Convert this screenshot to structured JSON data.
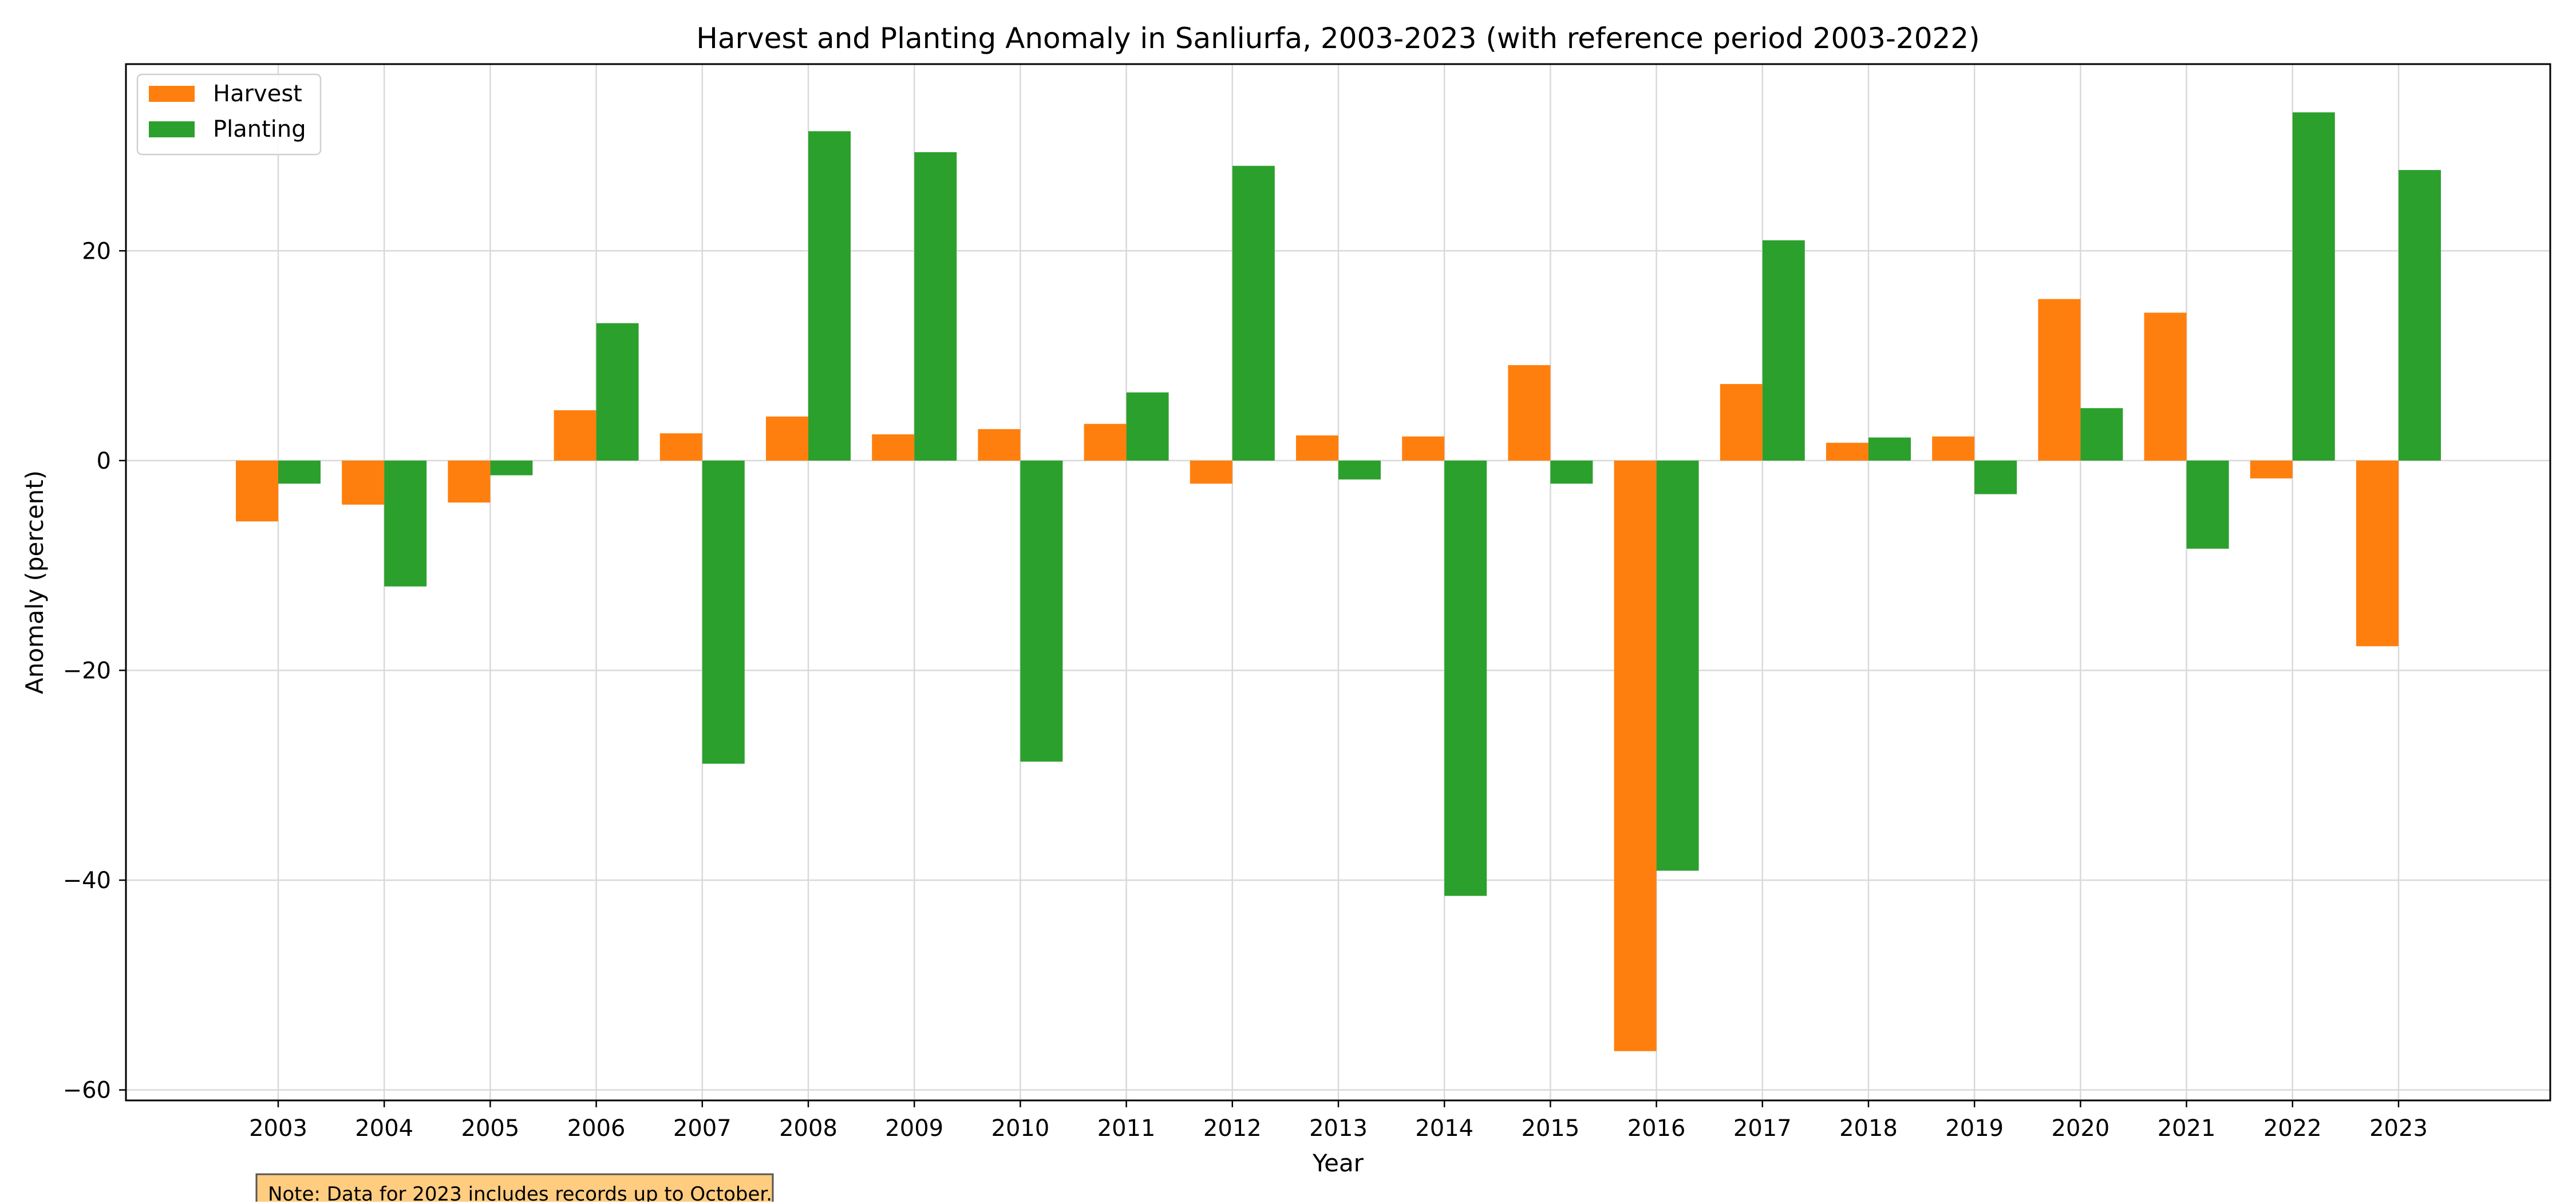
{
  "chart_data": {
    "type": "bar",
    "title": "Harvest and Planting Anomaly in Sanliurfa, 2003-2023 (with reference period 2003-2022)",
    "xlabel": "Year",
    "ylabel": "Anomaly (percent)",
    "categories": [
      "2003",
      "2004",
      "2005",
      "2006",
      "2007",
      "2008",
      "2009",
      "2010",
      "2011",
      "2012",
      "2013",
      "2014",
      "2015",
      "2016",
      "2017",
      "2018",
      "2019",
      "2020",
      "2021",
      "2022",
      "2023"
    ],
    "series": [
      {
        "name": "Harvest",
        "color": "#ff7f0e",
        "values": [
          -5.8,
          -4.2,
          -4.0,
          4.8,
          2.6,
          4.2,
          2.5,
          3.0,
          3.5,
          -2.2,
          2.4,
          2.3,
          9.1,
          -56.3,
          7.3,
          1.7,
          2.3,
          15.4,
          14.1,
          -1.7,
          -17.7
        ]
      },
      {
        "name": "Planting",
        "color": "#2ca02c",
        "values": [
          -2.2,
          -12.0,
          -1.4,
          13.1,
          -28.9,
          31.4,
          29.4,
          -28.7,
          6.5,
          28.1,
          -1.8,
          -41.5,
          -2.2,
          -39.1,
          21.0,
          2.2,
          -3.2,
          5.0,
          -8.4,
          33.2,
          27.7
        ]
      }
    ],
    "ylim": [
      -61.0,
      37.8
    ],
    "yticks": [
      20,
      0,
      -20,
      -40,
      -60
    ],
    "ytick_labels": [
      "20",
      "0",
      "−20",
      "−40",
      "−60"
    ],
    "grid": true,
    "legend_position": "upper left",
    "note": "Note: Data for 2023 includes records up to October."
  }
}
